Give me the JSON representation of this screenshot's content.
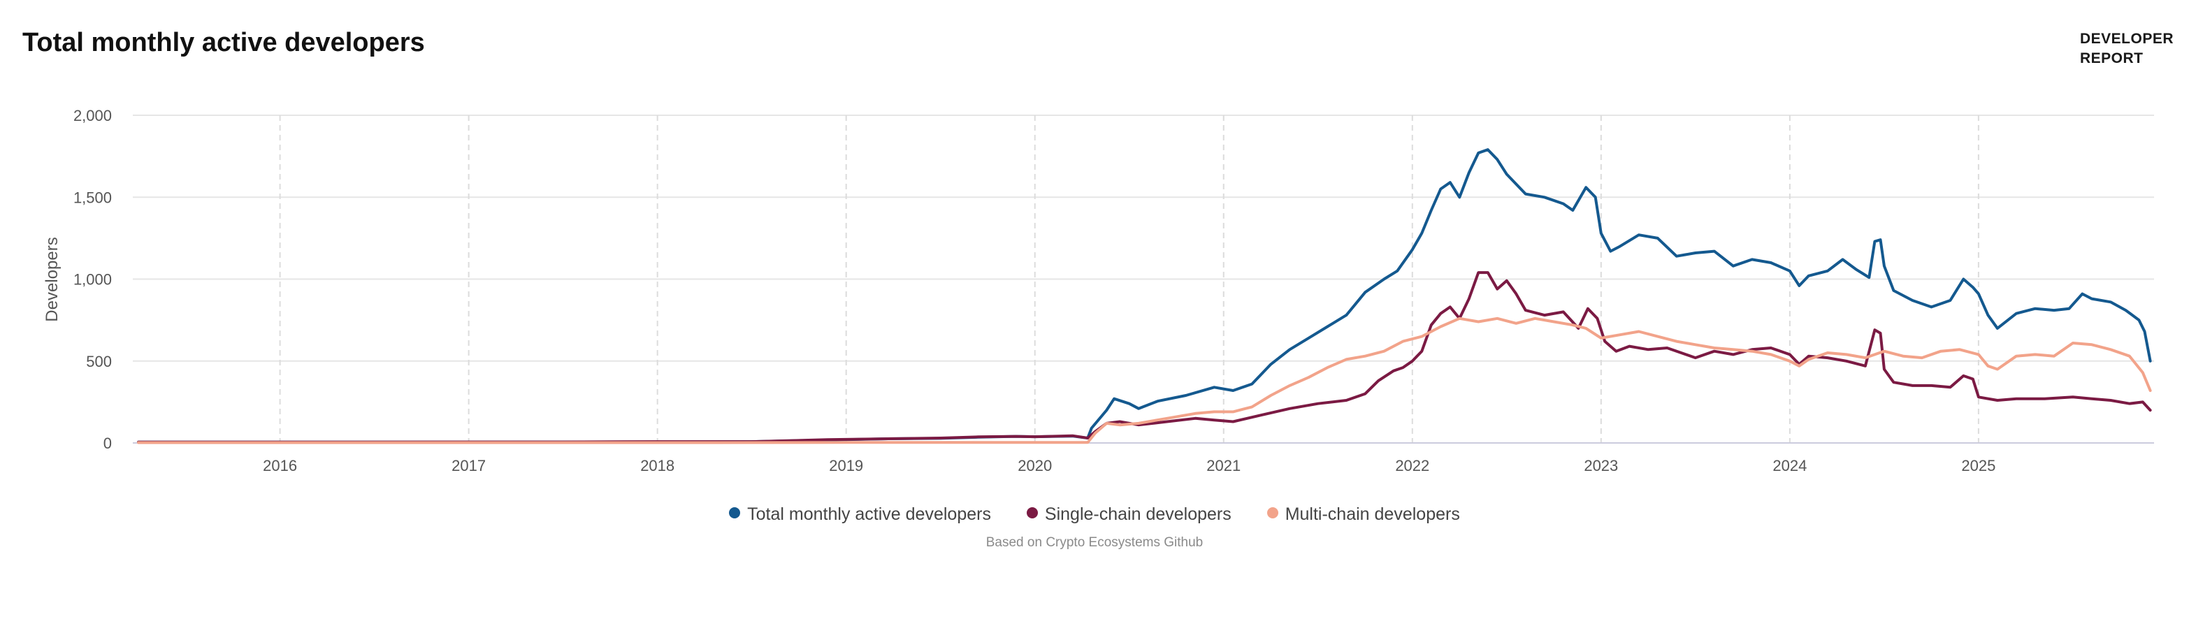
{
  "header": {
    "title": "Total monthly active developers",
    "logo_line1": "DEVELOPER",
    "logo_line2": "REPORT"
  },
  "source_note": "Based on Crypto Ecosystems Github",
  "colors": {
    "total": "#14598f",
    "single": "#7b1a43",
    "multi": "#f2a38a",
    "grid": "#e6e6e6",
    "axis": "#ccccdd"
  },
  "chart_data": {
    "type": "line",
    "title": "Total monthly active developers",
    "xlabel": "",
    "ylabel": "Developers",
    "xlim": [
      2015.22,
      2025.93
    ],
    "ylim": [
      0,
      2000
    ],
    "x_ticks": [
      2016,
      2017,
      2018,
      2019,
      2020,
      2021,
      2022,
      2023,
      2024,
      2025
    ],
    "x_tick_labels": [
      "2016",
      "2017",
      "2018",
      "2019",
      "2020",
      "2021",
      "2022",
      "2023",
      "2024",
      "2025"
    ],
    "y_ticks": [
      0,
      500,
      1000,
      1500,
      2000
    ],
    "y_tick_labels": [
      "0",
      "500",
      "1,000",
      "1,500",
      "2,000"
    ],
    "grid": true,
    "legend_position": "bottom-center",
    "series": [
      {
        "name": "Total monthly active developers",
        "color": "#14598f",
        "points": [
          [
            2015.25,
            5
          ],
          [
            2016.0,
            5
          ],
          [
            2017.0,
            5
          ],
          [
            2017.5,
            6
          ],
          [
            2018.0,
            6
          ],
          [
            2018.5,
            8
          ],
          [
            2018.9,
            18
          ],
          [
            2019.2,
            25
          ],
          [
            2019.5,
            28
          ],
          [
            2019.7,
            35
          ],
          [
            2019.9,
            40
          ],
          [
            2020.0,
            38
          ],
          [
            2020.2,
            42
          ],
          [
            2020.28,
            30
          ],
          [
            2020.3,
            90
          ],
          [
            2020.38,
            200
          ],
          [
            2020.42,
            270
          ],
          [
            2020.5,
            240
          ],
          [
            2020.55,
            210
          ],
          [
            2020.65,
            255
          ],
          [
            2020.8,
            290
          ],
          [
            2020.95,
            340
          ],
          [
            2021.05,
            320
          ],
          [
            2021.15,
            360
          ],
          [
            2021.25,
            480
          ],
          [
            2021.35,
            570
          ],
          [
            2021.45,
            640
          ],
          [
            2021.55,
            710
          ],
          [
            2021.65,
            780
          ],
          [
            2021.75,
            920
          ],
          [
            2021.85,
            1000
          ],
          [
            2021.92,
            1050
          ],
          [
            2022.0,
            1180
          ],
          [
            2022.05,
            1280
          ],
          [
            2022.1,
            1420
          ],
          [
            2022.15,
            1550
          ],
          [
            2022.2,
            1590
          ],
          [
            2022.25,
            1500
          ],
          [
            2022.3,
            1650
          ],
          [
            2022.35,
            1770
          ],
          [
            2022.4,
            1790
          ],
          [
            2022.45,
            1730
          ],
          [
            2022.5,
            1640
          ],
          [
            2022.6,
            1520
          ],
          [
            2022.7,
            1500
          ],
          [
            2022.8,
            1460
          ],
          [
            2022.85,
            1420
          ],
          [
            2022.92,
            1560
          ],
          [
            2022.97,
            1500
          ],
          [
            2023.0,
            1280
          ],
          [
            2023.05,
            1170
          ],
          [
            2023.1,
            1200
          ],
          [
            2023.2,
            1270
          ],
          [
            2023.3,
            1250
          ],
          [
            2023.4,
            1140
          ],
          [
            2023.5,
            1160
          ],
          [
            2023.6,
            1170
          ],
          [
            2023.7,
            1080
          ],
          [
            2023.8,
            1120
          ],
          [
            2023.9,
            1100
          ],
          [
            2024.0,
            1050
          ],
          [
            2024.05,
            960
          ],
          [
            2024.1,
            1020
          ],
          [
            2024.2,
            1050
          ],
          [
            2024.28,
            1120
          ],
          [
            2024.35,
            1060
          ],
          [
            2024.42,
            1010
          ],
          [
            2024.45,
            1230
          ],
          [
            2024.48,
            1240
          ],
          [
            2024.5,
            1080
          ],
          [
            2024.55,
            930
          ],
          [
            2024.65,
            870
          ],
          [
            2024.75,
            830
          ],
          [
            2024.85,
            870
          ],
          [
            2024.92,
            1000
          ],
          [
            2024.97,
            950
          ],
          [
            2025.0,
            910
          ],
          [
            2025.05,
            780
          ],
          [
            2025.1,
            700
          ],
          [
            2025.2,
            790
          ],
          [
            2025.3,
            820
          ],
          [
            2025.4,
            810
          ],
          [
            2025.48,
            820
          ],
          [
            2025.55,
            910
          ],
          [
            2025.6,
            880
          ],
          [
            2025.7,
            860
          ],
          [
            2025.78,
            810
          ],
          [
            2025.85,
            750
          ],
          [
            2025.88,
            680
          ],
          [
            2025.91,
            500
          ]
        ]
      },
      {
        "name": "Single-chain developers",
        "color": "#7b1a43",
        "points": [
          [
            2015.25,
            5
          ],
          [
            2016.0,
            5
          ],
          [
            2017.0,
            6
          ],
          [
            2017.5,
            6
          ],
          [
            2018.0,
            8
          ],
          [
            2018.5,
            8
          ],
          [
            2018.9,
            20
          ],
          [
            2019.2,
            25
          ],
          [
            2019.5,
            30
          ],
          [
            2019.7,
            37
          ],
          [
            2019.9,
            40
          ],
          [
            2020.0,
            38
          ],
          [
            2020.2,
            44
          ],
          [
            2020.28,
            30
          ],
          [
            2020.32,
            70
          ],
          [
            2020.38,
            120
          ],
          [
            2020.45,
            130
          ],
          [
            2020.55,
            110
          ],
          [
            2020.7,
            130
          ],
          [
            2020.85,
            150
          ],
          [
            2020.95,
            140
          ],
          [
            2021.05,
            130
          ],
          [
            2021.2,
            170
          ],
          [
            2021.35,
            210
          ],
          [
            2021.5,
            240
          ],
          [
            2021.65,
            260
          ],
          [
            2021.75,
            300
          ],
          [
            2021.82,
            380
          ],
          [
            2021.9,
            440
          ],
          [
            2021.95,
            460
          ],
          [
            2022.0,
            500
          ],
          [
            2022.05,
            560
          ],
          [
            2022.1,
            720
          ],
          [
            2022.15,
            790
          ],
          [
            2022.2,
            830
          ],
          [
            2022.25,
            760
          ],
          [
            2022.3,
            880
          ],
          [
            2022.35,
            1040
          ],
          [
            2022.4,
            1040
          ],
          [
            2022.45,
            940
          ],
          [
            2022.5,
            990
          ],
          [
            2022.55,
            910
          ],
          [
            2022.6,
            810
          ],
          [
            2022.7,
            780
          ],
          [
            2022.8,
            800
          ],
          [
            2022.88,
            700
          ],
          [
            2022.93,
            820
          ],
          [
            2022.98,
            760
          ],
          [
            2023.02,
            620
          ],
          [
            2023.08,
            560
          ],
          [
            2023.15,
            590
          ],
          [
            2023.25,
            570
          ],
          [
            2023.35,
            580
          ],
          [
            2023.5,
            520
          ],
          [
            2023.6,
            560
          ],
          [
            2023.7,
            540
          ],
          [
            2023.8,
            570
          ],
          [
            2023.9,
            580
          ],
          [
            2024.0,
            540
          ],
          [
            2024.05,
            480
          ],
          [
            2024.1,
            530
          ],
          [
            2024.2,
            520
          ],
          [
            2024.3,
            500
          ],
          [
            2024.4,
            470
          ],
          [
            2024.45,
            690
          ],
          [
            2024.48,
            670
          ],
          [
            2024.5,
            450
          ],
          [
            2024.55,
            370
          ],
          [
            2024.65,
            350
          ],
          [
            2024.75,
            350
          ],
          [
            2024.85,
            340
          ],
          [
            2024.92,
            410
          ],
          [
            2024.97,
            390
          ],
          [
            2025.0,
            280
          ],
          [
            2025.1,
            260
          ],
          [
            2025.2,
            270
          ],
          [
            2025.35,
            270
          ],
          [
            2025.5,
            280
          ],
          [
            2025.6,
            270
          ],
          [
            2025.7,
            260
          ],
          [
            2025.8,
            240
          ],
          [
            2025.87,
            250
          ],
          [
            2025.91,
            200
          ]
        ]
      },
      {
        "name": "Multi-chain developers",
        "color": "#f2a38a",
        "points": [
          [
            2015.25,
            2
          ],
          [
            2016.0,
            2
          ],
          [
            2017.0,
            2
          ],
          [
            2018.0,
            2
          ],
          [
            2019.0,
            3
          ],
          [
            2020.0,
            3
          ],
          [
            2020.28,
            3
          ],
          [
            2020.32,
            60
          ],
          [
            2020.38,
            120
          ],
          [
            2020.45,
            110
          ],
          [
            2020.55,
            120
          ],
          [
            2020.7,
            150
          ],
          [
            2020.85,
            180
          ],
          [
            2020.95,
            190
          ],
          [
            2021.05,
            190
          ],
          [
            2021.15,
            220
          ],
          [
            2021.25,
            290
          ],
          [
            2021.35,
            350
          ],
          [
            2021.45,
            400
          ],
          [
            2021.55,
            460
          ],
          [
            2021.65,
            510
          ],
          [
            2021.75,
            530
          ],
          [
            2021.85,
            560
          ],
          [
            2021.95,
            620
          ],
          [
            2022.05,
            650
          ],
          [
            2022.15,
            710
          ],
          [
            2022.25,
            760
          ],
          [
            2022.35,
            740
          ],
          [
            2022.45,
            760
          ],
          [
            2022.55,
            730
          ],
          [
            2022.65,
            760
          ],
          [
            2022.75,
            740
          ],
          [
            2022.85,
            720
          ],
          [
            2022.92,
            700
          ],
          [
            2023.0,
            640
          ],
          [
            2023.1,
            660
          ],
          [
            2023.2,
            680
          ],
          [
            2023.3,
            650
          ],
          [
            2023.4,
            620
          ],
          [
            2023.5,
            600
          ],
          [
            2023.6,
            580
          ],
          [
            2023.7,
            570
          ],
          [
            2023.8,
            560
          ],
          [
            2023.9,
            540
          ],
          [
            2024.0,
            500
          ],
          [
            2024.05,
            470
          ],
          [
            2024.1,
            510
          ],
          [
            2024.2,
            550
          ],
          [
            2024.3,
            540
          ],
          [
            2024.4,
            520
          ],
          [
            2024.5,
            560
          ],
          [
            2024.6,
            530
          ],
          [
            2024.7,
            520
          ],
          [
            2024.8,
            560
          ],
          [
            2024.9,
            570
          ],
          [
            2025.0,
            540
          ],
          [
            2025.05,
            470
          ],
          [
            2025.1,
            450
          ],
          [
            2025.2,
            530
          ],
          [
            2025.3,
            540
          ],
          [
            2025.4,
            530
          ],
          [
            2025.5,
            610
          ],
          [
            2025.6,
            600
          ],
          [
            2025.7,
            570
          ],
          [
            2025.8,
            530
          ],
          [
            2025.87,
            430
          ],
          [
            2025.91,
            320
          ]
        ]
      }
    ]
  }
}
